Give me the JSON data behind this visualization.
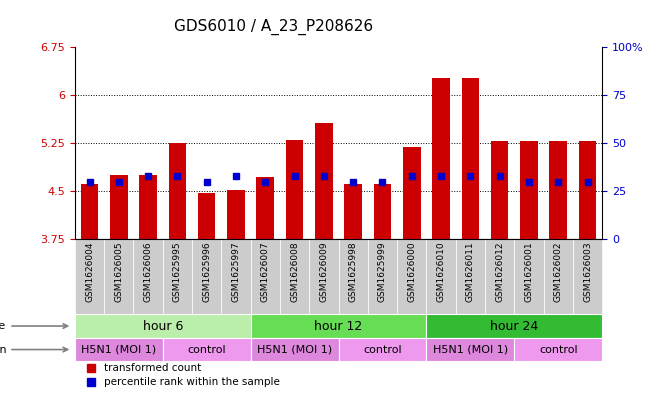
{
  "title": "GDS6010 / A_23_P208626",
  "samples": [
    "GSM1626004",
    "GSM1626005",
    "GSM1626006",
    "GSM1625995",
    "GSM1625996",
    "GSM1625997",
    "GSM1626007",
    "GSM1626008",
    "GSM1626009",
    "GSM1625998",
    "GSM1625999",
    "GSM1626000",
    "GSM1626010",
    "GSM1626011",
    "GSM1626012",
    "GSM1626001",
    "GSM1626002",
    "GSM1626003"
  ],
  "transformed_count": [
    4.62,
    4.75,
    4.76,
    5.26,
    4.47,
    4.52,
    4.73,
    5.3,
    5.56,
    4.61,
    4.62,
    5.19,
    6.27,
    6.27,
    5.28,
    5.28,
    5.28,
    5.28
  ],
  "percentile_values": [
    30,
    30,
    33,
    33,
    30,
    33,
    30,
    33,
    33,
    30,
    30,
    33,
    33,
    33,
    33,
    30,
    30,
    30
  ],
  "ylim": [
    3.75,
    6.75
  ],
  "yticks": [
    3.75,
    4.5,
    5.25,
    6.0,
    6.75
  ],
  "ytick_labels": [
    "3.75",
    "4.5",
    "5.25",
    "6",
    "6.75"
  ],
  "right_yticks": [
    0,
    25,
    50,
    75,
    100
  ],
  "right_ytick_labels": [
    "0",
    "25",
    "50",
    "75",
    "100%"
  ],
  "bar_color": "#cc0000",
  "blue_color": "#0000cc",
  "bar_bottom": 3.75,
  "grid_lines": [
    4.5,
    5.25,
    6.0
  ],
  "bar_width": 0.6,
  "title_fontsize": 11,
  "tick_fontsize": 8,
  "label_fontsize": 8,
  "group_fontsize": 9,
  "left_tick_color": "#cc0000",
  "right_tick_color": "#0000cc",
  "sample_bg_color": "#cccccc",
  "time_groups": [
    {
      "label": "hour 6",
      "start": 0,
      "end": 6,
      "color": "#bbeeaa"
    },
    {
      "label": "hour 12",
      "start": 6,
      "end": 12,
      "color": "#66dd55"
    },
    {
      "label": "hour 24",
      "start": 12,
      "end": 18,
      "color": "#33bb33"
    }
  ],
  "infection_groups": [
    {
      "label": "H5N1 (MOI 1)",
      "start": 0,
      "end": 3,
      "color": "#dd88dd"
    },
    {
      "label": "control",
      "start": 3,
      "end": 6,
      "color": "#ee99ee"
    },
    {
      "label": "H5N1 (MOI 1)",
      "start": 6,
      "end": 9,
      "color": "#dd88dd"
    },
    {
      "label": "control",
      "start": 9,
      "end": 12,
      "color": "#ee99ee"
    },
    {
      "label": "H5N1 (MOI 1)",
      "start": 12,
      "end": 15,
      "color": "#dd88dd"
    },
    {
      "label": "control",
      "start": 15,
      "end": 18,
      "color": "#ee99ee"
    }
  ]
}
